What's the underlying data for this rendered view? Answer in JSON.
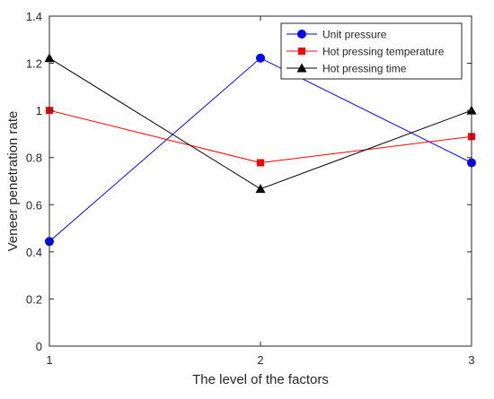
{
  "chart_data": {
    "type": "line",
    "title": "",
    "xlabel": "The level of the factors",
    "ylabel": "Veneer penetration rate",
    "x": [
      1,
      2,
      3
    ],
    "xlim": [
      1,
      3
    ],
    "ylim": [
      0,
      1.4
    ],
    "xticks": [
      "1",
      "2",
      "3"
    ],
    "yticks": [
      "0",
      "0.2",
      "0.4",
      "0.6",
      "0.8",
      "1",
      "1.2",
      "1.4"
    ],
    "grid": false,
    "legend_position": "top-right",
    "series": [
      {
        "name": "Unit pressure",
        "values": [
          0.444,
          1.222,
          0.778
        ],
        "color": "#0000ff",
        "marker": "circle"
      },
      {
        "name": "Hot pressing temperature",
        "values": [
          1.0,
          0.778,
          0.889
        ],
        "color": "#ff0000",
        "marker": "square"
      },
      {
        "name": "Hot pressing time",
        "values": [
          1.222,
          0.667,
          1.0
        ],
        "color": "#000000",
        "marker": "triangle"
      }
    ]
  }
}
